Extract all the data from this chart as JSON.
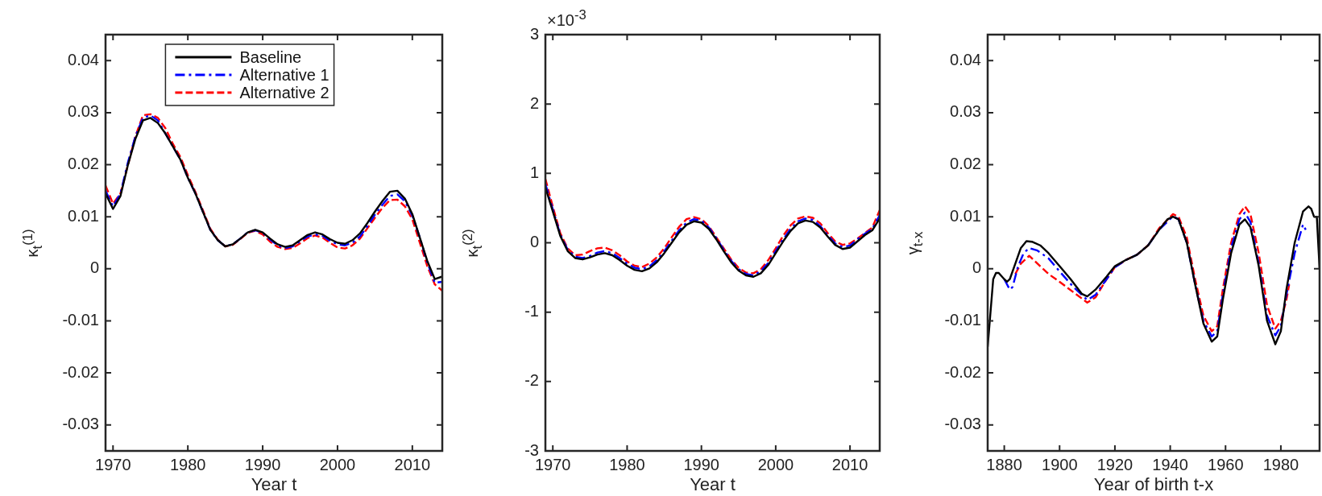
{
  "chart_data": [
    {
      "type": "line",
      "xlabel": "Year t",
      "ylabel": "κ$_{t}$$^{(1)}$",
      "legend": "top",
      "x": [
        1969,
        1970,
        1971,
        1972,
        1973,
        1974,
        1975,
        1976,
        1977,
        1978,
        1979,
        1980,
        1981,
        1982,
        1983,
        1984,
        1985,
        1986,
        1987,
        1988,
        1989,
        1990,
        1991,
        1992,
        1993,
        1994,
        1995,
        1996,
        1997,
        1998,
        1999,
        2000,
        2001,
        2002,
        2003,
        2004,
        2005,
        2006,
        2007,
        2008,
        2009,
        2010,
        2011,
        2012,
        2013,
        2014
      ],
      "xlim": [
        1969,
        2014
      ],
      "xticks": [
        1970,
        1980,
        1990,
        2000,
        2010
      ],
      "ylim": [
        -0.035,
        0.045
      ],
      "yticks": [
        -0.03,
        -0.02,
        -0.01,
        0,
        0.01,
        0.02,
        0.03,
        0.04
      ],
      "series": [
        {
          "name": "Baseline",
          "color": "#000000",
          "line_style": "solid",
          "values": [
            0.0145,
            0.0115,
            0.014,
            0.02,
            0.025,
            0.0285,
            0.029,
            0.028,
            0.026,
            0.0235,
            0.021,
            0.0175,
            0.0145,
            0.011,
            0.0075,
            0.0055,
            0.0043,
            0.0047,
            0.0058,
            0.007,
            0.0075,
            0.007,
            0.0058,
            0.0047,
            0.0042,
            0.0045,
            0.0055,
            0.0065,
            0.007,
            0.0066,
            0.0057,
            0.005,
            0.0048,
            0.0055,
            0.0068,
            0.0088,
            0.011,
            0.013,
            0.0148,
            0.015,
            0.0135,
            0.0105,
            0.006,
            0.0015,
            -0.002,
            -0.0015
          ]
        },
        {
          "name": "Alternative 1",
          "color": "#0000ff",
          "line_style": "dashdot",
          "values": [
            0.015,
            0.012,
            0.0145,
            0.0205,
            0.0255,
            0.029,
            0.0295,
            0.0285,
            0.026,
            0.0235,
            0.021,
            0.0175,
            0.0145,
            0.011,
            0.0075,
            0.0055,
            0.0043,
            0.0047,
            0.0058,
            0.007,
            0.0074,
            0.0069,
            0.0056,
            0.0045,
            0.004,
            0.0043,
            0.0053,
            0.0062,
            0.0066,
            0.0063,
            0.0054,
            0.0047,
            0.0045,
            0.005,
            0.0062,
            0.0082,
            0.0104,
            0.0123,
            0.014,
            0.0143,
            0.013,
            0.0102,
            0.006,
            0.0012,
            -0.0027,
            -0.0025
          ]
        },
        {
          "name": "Alternative 2",
          "color": "#ff0000",
          "line_style": "dashed",
          "values": [
            0.016,
            0.0125,
            0.0145,
            0.02,
            0.0255,
            0.0295,
            0.0297,
            0.029,
            0.027,
            0.024,
            0.0215,
            0.018,
            0.0148,
            0.0113,
            0.0077,
            0.0056,
            0.0043,
            0.0046,
            0.0057,
            0.0069,
            0.0073,
            0.0066,
            0.0052,
            0.0042,
            0.0038,
            0.004,
            0.0049,
            0.0059,
            0.0064,
            0.006,
            0.005,
            0.0041,
            0.0039,
            0.0045,
            0.0058,
            0.0078,
            0.0098,
            0.0117,
            0.0132,
            0.0133,
            0.012,
            0.0095,
            0.005,
            0.0005,
            -0.003,
            -0.0042
          ]
        }
      ]
    },
    {
      "type": "line",
      "xlabel": "Year t",
      "ylabel": "κ$_{t}$$^{(2)}$",
      "annotations": [
        "×10$^{-3}$"
      ],
      "x": [
        1969,
        1970,
        1971,
        1972,
        1973,
        1974,
        1975,
        1976,
        1977,
        1978,
        1979,
        1980,
        1981,
        1982,
        1983,
        1984,
        1985,
        1986,
        1987,
        1988,
        1989,
        1990,
        1991,
        1992,
        1993,
        1994,
        1995,
        1996,
        1997,
        1998,
        1999,
        2000,
        2001,
        2002,
        2003,
        2004,
        2005,
        2006,
        2007,
        2008,
        2009,
        2010,
        2011,
        2012,
        2013,
        2014
      ],
      "xlim": [
        1969,
        2014
      ],
      "xticks": [
        1970,
        1980,
        1990,
        2000,
        2010
      ],
      "ylim": [
        -3,
        3
      ],
      "yticks": [
        -3,
        -2,
        -1,
        0,
        1,
        2,
        3
      ],
      "series": [
        {
          "color": "#000000",
          "line_style": "solid",
          "values": [
            0.8,
            0.45,
            0.1,
            -0.12,
            -0.22,
            -0.24,
            -0.21,
            -0.17,
            -0.15,
            -0.18,
            -0.25,
            -0.33,
            -0.39,
            -0.41,
            -0.37,
            -0.28,
            -0.15,
            0,
            0.15,
            0.26,
            0.31,
            0.29,
            0.2,
            0.05,
            -0.12,
            -0.28,
            -0.4,
            -0.47,
            -0.49,
            -0.44,
            -0.32,
            -0.15,
            0.02,
            0.17,
            0.28,
            0.32,
            0.3,
            0.22,
            0.09,
            -0.03,
            -0.09,
            -0.07,
            0.02,
            0.11,
            0.18,
            0.35
          ]
        },
        {
          "color": "#0000ff",
          "line_style": "dashdot",
          "values": [
            0.85,
            0.48,
            0.12,
            -0.1,
            -0.2,
            -0.22,
            -0.19,
            -0.14,
            -0.12,
            -0.15,
            -0.22,
            -0.3,
            -0.36,
            -0.38,
            -0.34,
            -0.25,
            -0.12,
            0.03,
            0.18,
            0.29,
            0.34,
            0.32,
            0.22,
            0.07,
            -0.1,
            -0.26,
            -0.38,
            -0.45,
            -0.47,
            -0.41,
            -0.29,
            -0.12,
            0.05,
            0.2,
            0.31,
            0.35,
            0.33,
            0.24,
            0.11,
            -0.01,
            -0.06,
            -0.04,
            0.05,
            0.13,
            0.2,
            0.4
          ]
        },
        {
          "color": "#ff0000",
          "line_style": "dashed",
          "values": [
            0.92,
            0.52,
            0.14,
            -0.08,
            -0.18,
            -0.17,
            -0.12,
            -0.08,
            -0.07,
            -0.11,
            -0.18,
            -0.27,
            -0.33,
            -0.35,
            -0.3,
            -0.21,
            -0.08,
            0.08,
            0.23,
            0.34,
            0.37,
            0.34,
            0.24,
            0.08,
            -0.08,
            -0.24,
            -0.36,
            -0.43,
            -0.44,
            -0.38,
            -0.25,
            -0.08,
            0.1,
            0.25,
            0.35,
            0.38,
            0.36,
            0.28,
            0.14,
            0.02,
            -0.03,
            -0.01,
            0.06,
            0.14,
            0.22,
            0.47
          ]
        }
      ]
    },
    {
      "type": "line",
      "xlabel": "Year of birth t-x",
      "ylabel": "γ$_{t-x}$",
      "xlim": [
        1874,
        1994
      ],
      "xticks": [
        1880,
        1900,
        1920,
        1940,
        1960,
        1980
      ],
      "ylim": [
        -0.035,
        0.045
      ],
      "yticks": [
        -0.03,
        -0.02,
        -0.01,
        0,
        0.01,
        0.02,
        0.03,
        0.04
      ],
      "series": [
        {
          "color": "#000000",
          "line_style": "solid",
          "x": [
            1874,
            1876,
            1877,
            1878,
            1880,
            1881,
            1882,
            1884,
            1886,
            1888,
            1890,
            1893,
            1896,
            1900,
            1904,
            1908,
            1910,
            1913,
            1917,
            1920,
            1924,
            1928,
            1932,
            1936,
            1939,
            1941,
            1943,
            1946,
            1949,
            1952,
            1955,
            1957,
            1959,
            1962,
            1965,
            1967,
            1969,
            1972,
            1975,
            1978,
            1980,
            1982,
            1985,
            1988,
            1990,
            1991,
            1992,
            1993,
            1994
          ],
          "values": [
            -0.015,
            -0.002,
            -0.0008,
            -0.0008,
            -0.002,
            -0.0025,
            -0.002,
            0.001,
            0.004,
            0.0053,
            0.0052,
            0.0045,
            0.003,
            0.0005,
            -0.002,
            -0.0048,
            -0.0053,
            -0.004,
            -0.0015,
            0.0005,
            0.0017,
            0.0027,
            0.0045,
            0.0075,
            0.0095,
            0.01,
            0.0095,
            0.005,
            -0.003,
            -0.0105,
            -0.014,
            -0.013,
            -0.006,
            0.003,
            0.0085,
            0.0095,
            0.008,
            0.0005,
            -0.01,
            -0.0145,
            -0.012,
            -0.004,
            0.005,
            0.011,
            0.012,
            0.0115,
            0.01,
            0.01,
            0
          ]
        },
        {
          "color": "#0000ff",
          "line_style": "dashdot",
          "x": [
            1880,
            1882,
            1883,
            1885,
            1887,
            1889,
            1892,
            1896,
            1900,
            1905,
            1910,
            1913,
            1917,
            1920,
            1924,
            1928,
            1932,
            1936,
            1941,
            1943,
            1946,
            1949,
            1952,
            1955,
            1957,
            1959,
            1962,
            1965,
            1967,
            1969,
            1972,
            1975,
            1978,
            1980,
            1982,
            1985,
            1988,
            1989
          ],
          "values": [
            -0.002,
            -0.004,
            -0.0035,
            0.0005,
            0.003,
            0.004,
            0.0035,
            0.002,
            -0.0005,
            -0.0035,
            -0.006,
            -0.005,
            -0.002,
            0.0003,
            0.0017,
            0.0027,
            0.0045,
            0.0075,
            0.0101,
            0.0095,
            0.005,
            -0.003,
            -0.01,
            -0.013,
            -0.012,
            -0.005,
            0.004,
            0.0095,
            0.0108,
            0.009,
            0.001,
            -0.009,
            -0.0128,
            -0.011,
            -0.005,
            0.003,
            0.0085,
            0.0075
          ]
        },
        {
          "color": "#ff0000",
          "line_style": "dashed",
          "x": [
            1884,
            1886,
            1889,
            1892,
            1896,
            1900,
            1905,
            1910,
            1913,
            1917,
            1920,
            1924,
            1928,
            1932,
            1936,
            1941,
            1943,
            1946,
            1949,
            1952,
            1955,
            1957,
            1959,
            1962,
            1965,
            1967,
            1969,
            1972,
            1975,
            1978,
            1980,
            1982,
            1983
          ],
          "values": [
            -0.001,
            0.001,
            0.0025,
            0.001,
            -0.001,
            -0.0025,
            -0.0045,
            -0.0065,
            -0.0055,
            -0.002,
            0.0003,
            0.0017,
            0.0027,
            0.0045,
            0.0078,
            0.0105,
            0.01,
            0.006,
            -0.002,
            -0.009,
            -0.012,
            -0.011,
            -0.004,
            0.005,
            0.0105,
            0.012,
            0.0105,
            0.003,
            -0.007,
            -0.0115,
            -0.01,
            -0.006,
            -0.003
          ]
        }
      ]
    }
  ]
}
